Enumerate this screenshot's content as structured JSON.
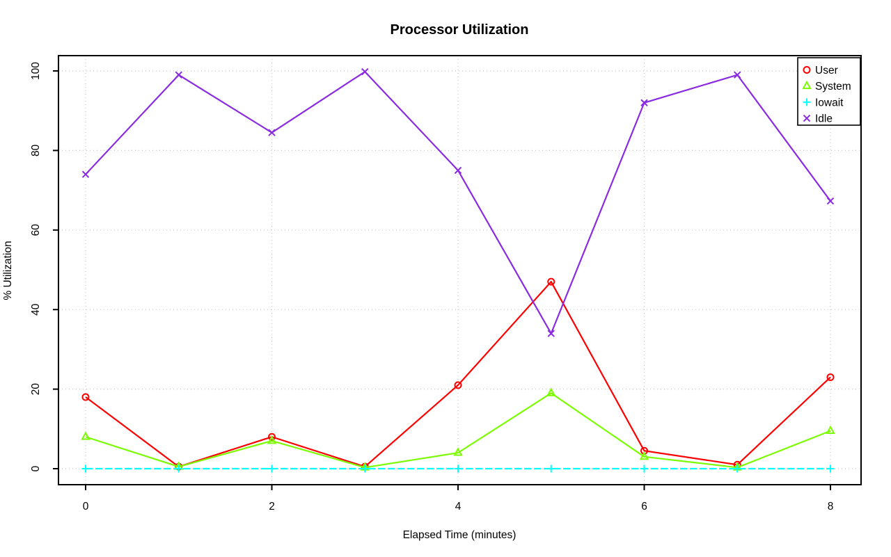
{
  "chart_data": {
    "type": "line",
    "title": "Processor Utilization",
    "xlabel": "Elapsed Time (minutes)",
    "ylabel": "% Utilization",
    "x": [
      0,
      1,
      2,
      3,
      4,
      5,
      6,
      7,
      8
    ],
    "xticks": [
      0,
      2,
      4,
      6,
      8
    ],
    "yticks": [
      0,
      20,
      40,
      60,
      80,
      100
    ],
    "xlim": [
      0,
      8
    ],
    "ylim": [
      0,
      100
    ],
    "grid": "dotted gray lines at labeled ticks",
    "background": "#FFFFFF",
    "grid_color": "#C8C8C8",
    "legend": {
      "position": "top-right",
      "border": "#000000",
      "fill": "#FFFFFF"
    },
    "series": [
      {
        "name": "User",
        "color": "#FF0000",
        "marker": "circle",
        "line": "solid",
        "values": [
          18,
          0.5,
          8,
          0.5,
          21,
          47,
          4.5,
          1,
          23
        ]
      },
      {
        "name": "System",
        "color": "#7CFC00",
        "marker": "triangle",
        "line": "solid",
        "values": [
          8,
          0.5,
          7,
          0.3,
          4,
          19,
          3,
          0.3,
          9.5
        ]
      },
      {
        "name": "Iowait",
        "color": "#00FFFF",
        "marker": "plus",
        "line": "dashed",
        "values": [
          0,
          0,
          0,
          0,
          0,
          0,
          0,
          0,
          0
        ]
      },
      {
        "name": "Idle",
        "color": "#8A2BE2",
        "marker": "x",
        "line": "solid",
        "values": [
          74,
          99,
          84.5,
          99.8,
          75,
          34,
          92,
          99,
          67.3
        ]
      }
    ]
  }
}
